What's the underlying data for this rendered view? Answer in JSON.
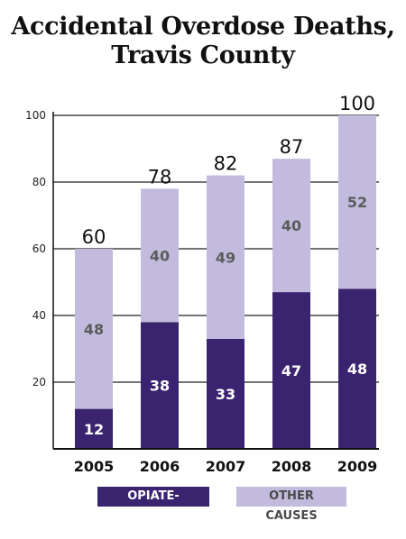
{
  "chart_data": {
    "type": "bar",
    "title_lines": [
      "Accidental Overdose Deaths,",
      "Travis County"
    ],
    "categories": [
      "2005",
      "2006",
      "2007",
      "2008",
      "2009"
    ],
    "totals": [
      60,
      78,
      82,
      87,
      100
    ],
    "series": [
      {
        "name": "OPIATE-CAUSED",
        "values": [
          12,
          38,
          33,
          47,
          48
        ],
        "color": "#3a2470",
        "label_color": "#ffffff"
      },
      {
        "name": "OTHER CAUSES",
        "values": [
          48,
          40,
          49,
          40,
          52
        ],
        "color": "#c2bbdd",
        "label_color": "#5b5b5b"
      }
    ],
    "stacked": true,
    "yticks": [
      20,
      40,
      60,
      80,
      100
    ],
    "ylim": [
      0,
      100
    ],
    "grid": true,
    "legend_position": "bottom"
  }
}
